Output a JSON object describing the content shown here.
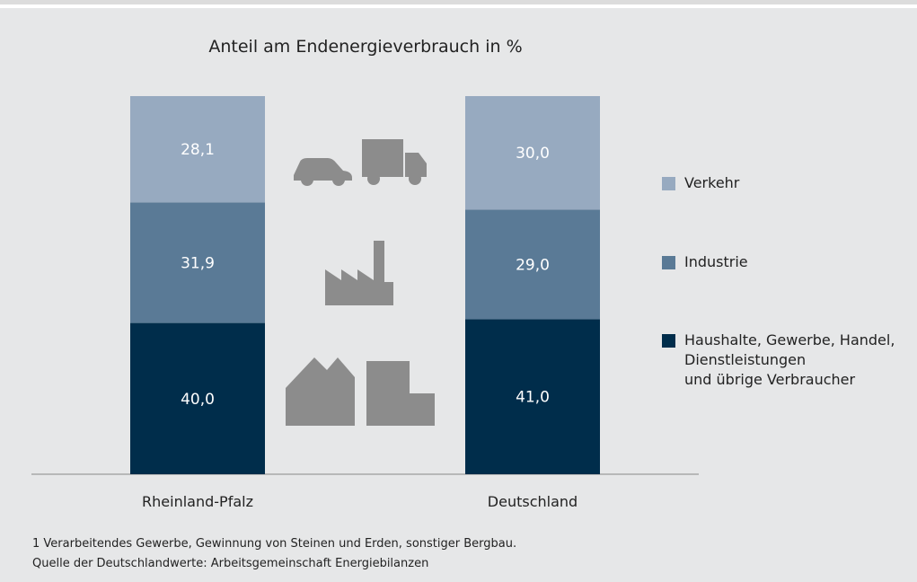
{
  "chart_data": {
    "type": "stacked_bar",
    "title": "Anteil am Endenergieverbrauch in %",
    "categories": [
      "Rheinland-Pfalz",
      "Deutschland"
    ],
    "series": [
      {
        "name": "Haushalte, Gewerbe, Handel,\nDienstleistungen\nund übrige Verbraucher",
        "color": "#002d4b",
        "values": [
          40.0,
          41.0
        ],
        "value_labels": [
          "40,0",
          "41,0"
        ]
      },
      {
        "name": "Industrie",
        "color": "#5a7a96",
        "values": [
          31.9,
          29.0
        ],
        "value_labels": [
          "31,9",
          "29,0"
        ]
      },
      {
        "name": "Verkehr",
        "color": "#97aac0",
        "values": [
          28.1,
          30.0
        ],
        "value_labels": [
          "28,1",
          "30,0"
        ]
      }
    ],
    "ylim": [
      0,
      100
    ],
    "footnotes": [
      "1 Verarbeitendes Gewerbe, Gewinnung von Steinen und Erden, sonstiger Bergbau.",
      "Quelle der Deutschlandwerte: Arbeitsgemeinschaft Energiebilanzen"
    ]
  }
}
